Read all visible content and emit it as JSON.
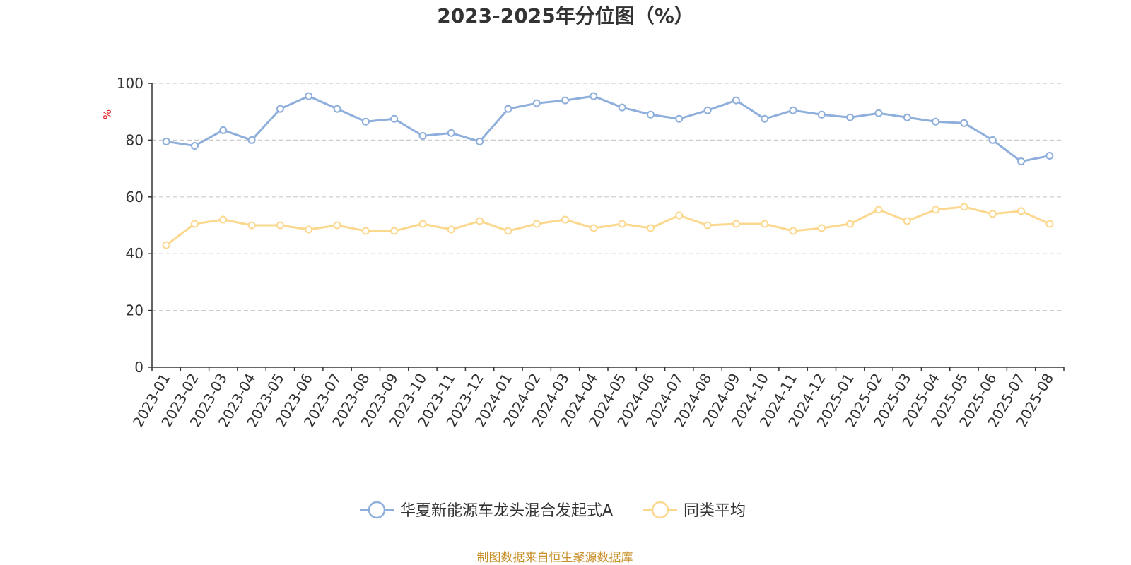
{
  "chart_data": {
    "type": "line",
    "title": "2023-2025年分位图（%）",
    "ylabel": "%",
    "xlabel": "",
    "ylim": [
      0,
      100
    ],
    "yticks": [
      0,
      20,
      40,
      60,
      80,
      100
    ],
    "grid": true,
    "legend_position": "bottom-center",
    "categories": [
      "2023-01",
      "2023-02",
      "2023-03",
      "2023-04",
      "2023-05",
      "2023-06",
      "2023-07",
      "2023-08",
      "2023-09",
      "2023-10",
      "2023-11",
      "2023-12",
      "2024-01",
      "2024-02",
      "2024-03",
      "2024-04",
      "2024-05",
      "2024-06",
      "2024-07",
      "2024-08",
      "2024-09",
      "2024-10",
      "2024-11",
      "2024-12",
      "2025-01",
      "2025-02",
      "2025-03",
      "2025-04",
      "2025-05",
      "2025-06",
      "2025-07",
      "2025-08"
    ],
    "series": [
      {
        "name": "华夏新能源车龙头混合发起式A",
        "color": "#8eaedb",
        "values": [
          79.5,
          78.0,
          83.5,
          80.0,
          91.0,
          95.5,
          91.0,
          86.5,
          87.5,
          81.5,
          82.5,
          79.5,
          91.0,
          93.0,
          94.0,
          95.5,
          91.5,
          89.0,
          87.5,
          90.5,
          94.0,
          87.5,
          90.5,
          89.0,
          88.0,
          89.5,
          88.0,
          86.5,
          86.0,
          80.0,
          72.5,
          74.5
        ]
      },
      {
        "name": "同类平均",
        "color": "#fbd88e",
        "values": [
          43.0,
          50.5,
          52.0,
          50.0,
          50.0,
          48.5,
          50.0,
          48.0,
          48.0,
          50.5,
          48.5,
          51.5,
          48.0,
          50.5,
          52.0,
          49.0,
          50.5,
          49.0,
          53.5,
          50.0,
          50.5,
          50.5,
          48.0,
          49.0,
          50.5,
          55.5,
          51.5,
          55.5,
          56.5,
          54.0,
          55.0,
          50.5
        ]
      }
    ]
  },
  "source_text": "制图数据来自恒生聚源数据库"
}
